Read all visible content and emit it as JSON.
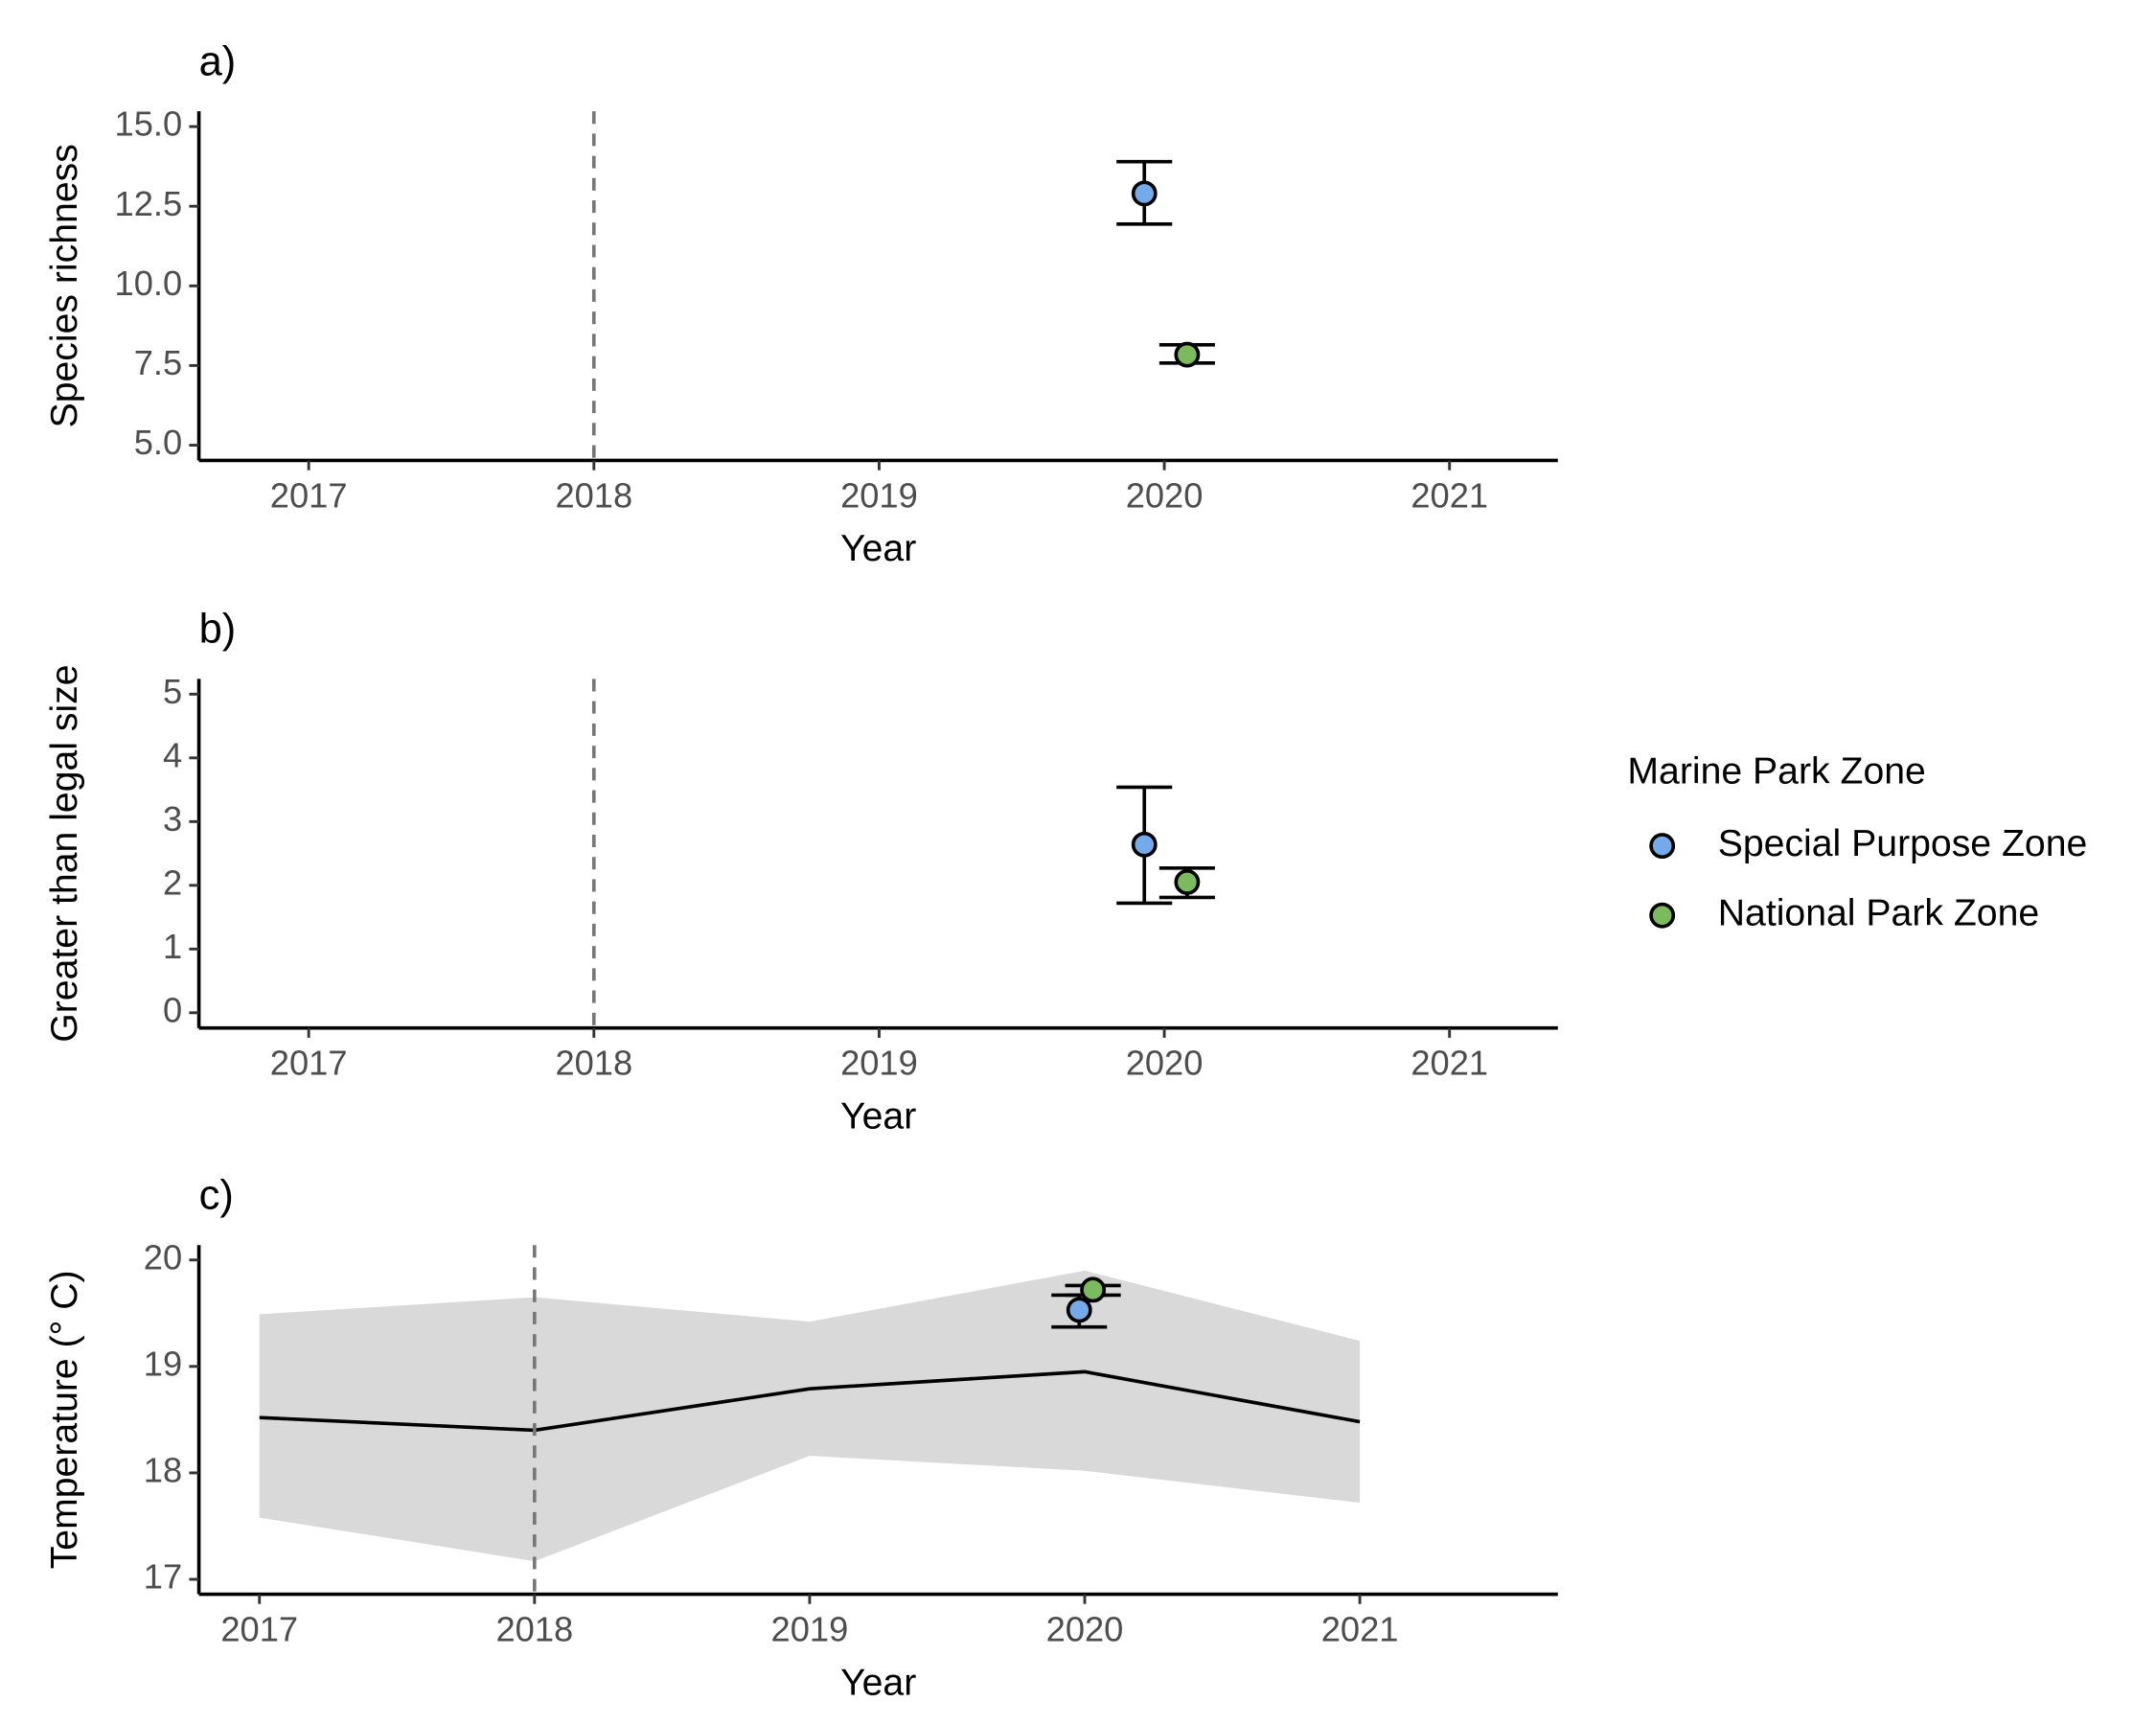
{
  "chart_data": [
    {
      "type": "scatter",
      "title": "a)",
      "x_label": "Year",
      "y_label": "Species richness",
      "xlim": [
        2016.615,
        2021.38
      ],
      "xticks": [
        2017,
        2018,
        2019,
        2020,
        2021
      ],
      "ylim": [
        4.52,
        15.48
      ],
      "yticks": [
        {
          "value": 5,
          "label": "5.0"
        },
        7.5,
        {
          "value": 10,
          "label": "10.0"
        },
        12.5,
        {
          "value": 15,
          "label": "15.0"
        }
      ],
      "vline": 2018,
      "series": [
        {
          "name": "Special Purpose Zone",
          "color": "#74aaea",
          "x": [
            2019.93
          ],
          "values": [
            12.9
          ],
          "lower": [
            11.94
          ],
          "upper": [
            13.9
          ]
        },
        {
          "name": "National Park Zone",
          "color": "#7cba5e",
          "x": [
            2020.08
          ],
          "values": [
            7.84
          ],
          "lower": [
            7.58
          ],
          "upper": [
            8.15
          ]
        }
      ]
    },
    {
      "type": "scatter",
      "title": "b)",
      "x_label": "Year",
      "y_label": "Greater than legal size",
      "legend_title": "Marine Park Zone",
      "xlim": [
        2016.615,
        2021.38
      ],
      "xticks": [
        2017,
        2018,
        2019,
        2020,
        2021
      ],
      "ylim": [
        -0.24,
        5.24
      ],
      "yticks": [
        0,
        1,
        2,
        3,
        4,
        5
      ],
      "vline": 2018,
      "series": [
        {
          "name": "Special Purpose Zone",
          "color": "#74aaea",
          "x": [
            2019.93
          ],
          "values": [
            2.64
          ],
          "lower": [
            1.72
          ],
          "upper": [
            3.54
          ]
        },
        {
          "name": "National Park Zone",
          "color": "#7cba5e",
          "x": [
            2020.08
          ],
          "values": [
            2.05
          ],
          "lower": [
            1.81
          ],
          "upper": [
            2.27
          ]
        }
      ]
    },
    {
      "type": "scatter",
      "title": "c)",
      "x_label": "Year",
      "y_label": "Temperature (° C)",
      "xlim": [
        2016.78,
        2021.72
      ],
      "xticks": [
        2017,
        2018,
        2019,
        2020,
        2021
      ],
      "ylim": [
        16.86,
        20.14
      ],
      "yticks": [
        17,
        18,
        19,
        20
      ],
      "vline": 2018,
      "line": {
        "color": "#000000",
        "band_color": "#d9d9d9",
        "x": [
          2017,
          2018,
          2019,
          2020,
          2021
        ],
        "values": [
          18.52,
          18.4,
          18.79,
          18.95,
          18.48
        ],
        "lower": [
          17.58,
          17.17,
          18.16,
          18.02,
          17.72
        ],
        "upper": [
          19.49,
          19.65,
          19.42,
          19.9,
          19.24
        ]
      },
      "series": [
        {
          "name": "Special Purpose Zone",
          "color": "#74aaea",
          "x": [
            2019.98
          ],
          "values": [
            19.53
          ],
          "lower": [
            19.37
          ],
          "upper": [
            19.67
          ]
        },
        {
          "name": "National Park Zone",
          "color": "#7cba5e",
          "x": [
            2020.03
          ],
          "values": [
            19.72
          ],
          "lower": [
            19.67
          ],
          "upper": [
            19.76
          ]
        }
      ]
    }
  ]
}
